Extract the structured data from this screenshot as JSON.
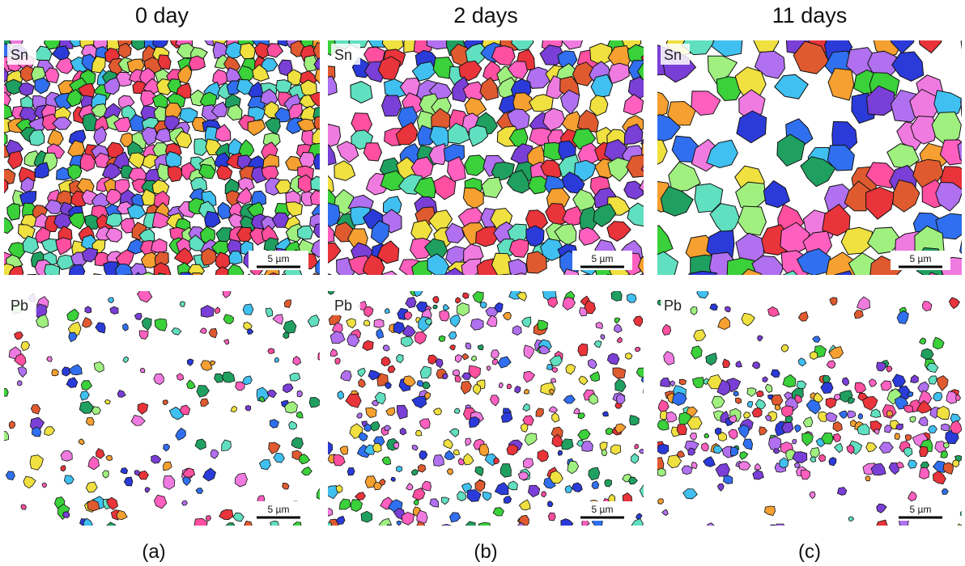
{
  "columns": [
    {
      "title": "0 day",
      "panels": [
        {
          "label": "Sn",
          "scale_bar": "5 µm"
        },
        {
          "label": "Pb",
          "scale_bar": "5 µm"
        }
      ],
      "caption": "(a)"
    },
    {
      "title": "2 days",
      "panels": [
        {
          "label": "Sn",
          "scale_bar": "5 µm"
        },
        {
          "label": "Pb",
          "scale_bar": "5 µm"
        }
      ],
      "caption": "(b)"
    },
    {
      "title": "11 days",
      "panels": [
        {
          "label": "Sn",
          "scale_bar": "5 µm"
        },
        {
          "label": "Pb",
          "scale_bar": "5 µm"
        }
      ],
      "caption": "(c)"
    }
  ]
}
